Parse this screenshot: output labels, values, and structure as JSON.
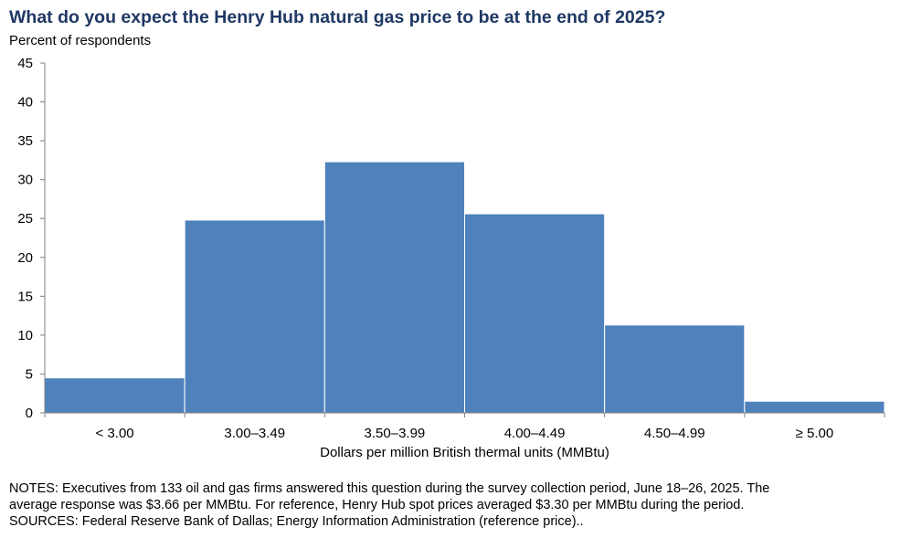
{
  "chart_data": {
    "type": "bar",
    "title": "What do you expect the Henry Hub natural gas price to be at the end of 2025?",
    "ylabel": "Percent of respondents",
    "xlabel": "Dollars per million British thermal units (MMBtu)",
    "categories": [
      "< 3.00",
      "3.00–3.49",
      "3.50–3.99",
      "4.00–4.49",
      "4.50–4.99",
      "≥ 5.00"
    ],
    "values": [
      4.5,
      24.8,
      32.3,
      25.6,
      11.3,
      1.5
    ],
    "ylim": [
      0,
      45
    ],
    "yticks": [
      0,
      5,
      10,
      15,
      20,
      25,
      30,
      35,
      40,
      45
    ],
    "grid": false,
    "legend": "none",
    "bar_color": "#4f81bd"
  },
  "notes": {
    "line1": "NOTES: Executives from 133 oil and gas firms answered this question during the survey collection period, June 18–26, 2025. The",
    "line2": "average response was $3.66 per MMBtu. For reference, Henry Hub spot prices averaged $3.30 per MMBtu during the period.",
    "line3": "SOURCES: Federal Reserve Bank of Dallas; Energy Information Administration (reference price).."
  }
}
